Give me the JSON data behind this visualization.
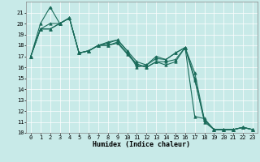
{
  "xlabel": "Humidex (Indice chaleur)",
  "xlim": [
    -0.5,
    23.5
  ],
  "ylim": [
    10,
    22
  ],
  "yticks": [
    10,
    11,
    12,
    13,
    14,
    15,
    16,
    17,
    18,
    19,
    20,
    21
  ],
  "xticks": [
    0,
    1,
    2,
    3,
    4,
    5,
    6,
    7,
    8,
    9,
    10,
    11,
    12,
    13,
    14,
    15,
    16,
    17,
    18,
    19,
    20,
    21,
    22,
    23
  ],
  "bg_color": "#c8eae8",
  "grid_color": "#ffffff",
  "line_color": "#1a6b5a",
  "lines": [
    {
      "x": [
        0,
        1,
        2,
        3,
        4,
        5,
        6,
        7,
        8,
        9,
        10,
        11,
        12,
        13,
        14,
        15,
        16,
        17,
        18,
        19,
        20,
        21,
        22,
        23
      ],
      "y": [
        17,
        20,
        21.5,
        20,
        20.5,
        17.3,
        17.5,
        18.0,
        18.3,
        18.5,
        17.5,
        16.5,
        16.2,
        17.0,
        16.7,
        17.3,
        17.8,
        15.5,
        11.2,
        10.3,
        10.3,
        10.3,
        10.5,
        10.3
      ]
    },
    {
      "x": [
        0,
        1,
        2,
        3,
        4,
        5,
        6,
        7,
        8,
        9,
        10,
        11,
        12,
        13,
        14,
        15,
        16,
        17,
        18,
        19,
        20,
        21,
        22,
        23
      ],
      "y": [
        17,
        19.5,
        20,
        20,
        20.5,
        17.3,
        17.5,
        18.0,
        18.0,
        18.3,
        17.3,
        16.3,
        16.0,
        16.5,
        16.5,
        16.7,
        17.8,
        15.0,
        11.0,
        10.3,
        10.3,
        10.3,
        10.5,
        10.3
      ]
    },
    {
      "x": [
        0,
        1,
        2,
        3,
        4,
        5,
        6,
        7,
        8,
        9,
        10,
        11,
        12,
        13,
        14,
        15,
        16,
        17,
        18,
        19,
        20,
        21,
        22,
        23
      ],
      "y": [
        17,
        19.5,
        19.5,
        20,
        20.5,
        17.3,
        17.5,
        18.0,
        18.0,
        18.2,
        17.2,
        16.2,
        16.0,
        16.5,
        16.2,
        16.5,
        17.8,
        14.8,
        11.2,
        10.3,
        10.3,
        10.3,
        10.5,
        10.3
      ]
    },
    {
      "x": [
        0,
        1,
        2,
        3,
        4,
        5,
        6,
        7,
        8,
        9,
        10,
        11,
        12,
        13,
        14,
        15,
        16,
        17,
        18,
        19,
        20,
        21,
        22,
        23
      ],
      "y": [
        17,
        19.5,
        19.5,
        20,
        20.5,
        17.3,
        17.5,
        18.0,
        18.2,
        18.5,
        17.5,
        16.0,
        16.2,
        16.8,
        16.7,
        17.3,
        17.8,
        11.5,
        11.3,
        10.3,
        10.3,
        10.3,
        10.5,
        10.3
      ]
    }
  ],
  "marker": "^",
  "markersize": 2.5,
  "linewidth": 0.8,
  "label_fontsize": 6,
  "tick_fontsize": 5
}
